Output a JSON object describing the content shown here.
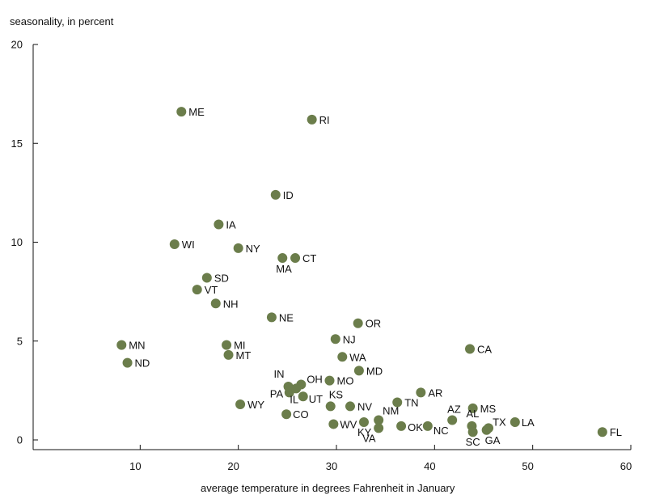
{
  "chart_data": {
    "type": "scatter",
    "ylabel": "seasonality, in percent",
    "xlabel": "average temperature in degrees Fahrenheit in January",
    "xlim": [
      0,
      60
    ],
    "ylim": [
      -0.5,
      20
    ],
    "x_ticks": [
      10,
      20,
      30,
      40,
      50,
      60
    ],
    "y_ticks": [
      0,
      5,
      10,
      15,
      20
    ],
    "grid": false,
    "legend": "none",
    "marker_color": "#6b7d4b",
    "points": [
      {
        "label": "ME",
        "x": 14.2,
        "y": 16.6
      },
      {
        "label": "RI",
        "x": 27.5,
        "y": 16.2
      },
      {
        "label": "ID",
        "x": 23.8,
        "y": 12.4
      },
      {
        "label": "IA",
        "x": 18.0,
        "y": 10.9
      },
      {
        "label": "WI",
        "x": 13.5,
        "y": 9.9
      },
      {
        "label": "NY",
        "x": 20.0,
        "y": 9.7
      },
      {
        "label": "MA",
        "x": 24.5,
        "y": 9.2
      },
      {
        "label": "CT",
        "x": 25.8,
        "y": 9.2
      },
      {
        "label": "SD",
        "x": 16.8,
        "y": 8.2
      },
      {
        "label": "VT",
        "x": 15.8,
        "y": 7.6
      },
      {
        "label": "NH",
        "x": 17.7,
        "y": 6.9
      },
      {
        "label": "NE",
        "x": 23.4,
        "y": 6.2
      },
      {
        "label": "OR",
        "x": 32.2,
        "y": 5.9
      },
      {
        "label": "NJ",
        "x": 29.9,
        "y": 5.1
      },
      {
        "label": "MN",
        "x": 8.1,
        "y": 4.8
      },
      {
        "label": "MI",
        "x": 18.8,
        "y": 4.8
      },
      {
        "label": "CA",
        "x": 43.6,
        "y": 4.6
      },
      {
        "label": "MT",
        "x": 19.0,
        "y": 4.3
      },
      {
        "label": "WA",
        "x": 30.6,
        "y": 4.2
      },
      {
        "label": "ND",
        "x": 8.7,
        "y": 3.9
      },
      {
        "label": "MD",
        "x": 32.3,
        "y": 3.5
      },
      {
        "label": "MO",
        "x": 29.3,
        "y": 3.0
      },
      {
        "label": "IN",
        "x": 25.1,
        "y": 2.7
      },
      {
        "label": "OH",
        "x": 26.4,
        "y": 2.8
      },
      {
        "label": "PA",
        "x": 25.2,
        "y": 2.4
      },
      {
        "label": "IL",
        "x": 25.9,
        "y": 2.6
      },
      {
        "label": "UT",
        "x": 26.6,
        "y": 2.2
      },
      {
        "label": "AR",
        "x": 38.6,
        "y": 2.4
      },
      {
        "label": "TN",
        "x": 36.2,
        "y": 1.9
      },
      {
        "label": "WY",
        "x": 20.2,
        "y": 1.8
      },
      {
        "label": "KS",
        "x": 29.4,
        "y": 1.7
      },
      {
        "label": "NV",
        "x": 31.4,
        "y": 1.7
      },
      {
        "label": "MS",
        "x": 43.9,
        "y": 1.6
      },
      {
        "label": "CO",
        "x": 24.9,
        "y": 1.3
      },
      {
        "label": "NM",
        "x": 34.3,
        "y": 1.0
      },
      {
        "label": "AZ",
        "x": 41.8,
        "y": 1.0
      },
      {
        "label": "WV",
        "x": 29.7,
        "y": 0.8
      },
      {
        "label": "KY",
        "x": 32.8,
        "y": 0.9
      },
      {
        "label": "LA",
        "x": 48.2,
        "y": 0.9
      },
      {
        "label": "OK",
        "x": 36.6,
        "y": 0.7
      },
      {
        "label": "NC",
        "x": 39.3,
        "y": 0.7
      },
      {
        "label": "AL",
        "x": 43.8,
        "y": 0.7
      },
      {
        "label": "TX",
        "x": 45.5,
        "y": 0.6
      },
      {
        "label": "VA",
        "x": 34.3,
        "y": 0.6
      },
      {
        "label": "GA",
        "x": 45.3,
        "y": 0.5
      },
      {
        "label": "SC",
        "x": 43.9,
        "y": 0.4
      },
      {
        "label": "FL",
        "x": 57.1,
        "y": 0.4
      }
    ]
  }
}
